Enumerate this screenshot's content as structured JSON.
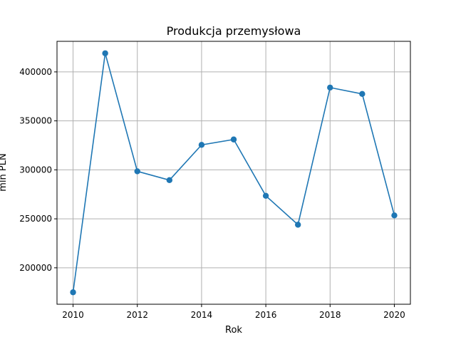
{
  "chart_data": {
    "type": "line",
    "title": "Produkcja przemysłowa",
    "xlabel": "Rok",
    "ylabel": "mln PLN",
    "x": [
      2010,
      2011,
      2012,
      2013,
      2014,
      2015,
      2016,
      2017,
      2018,
      2019,
      2020
    ],
    "series": [
      {
        "values": [
          175000,
          419000,
          298500,
          289500,
          325500,
          331000,
          273500,
          244000,
          384000,
          377500,
          253500
        ],
        "color": "#1f77b4",
        "marker": "circle"
      }
    ],
    "xticks": [
      2010,
      2012,
      2014,
      2016,
      2018,
      2020
    ],
    "yticks": [
      200000,
      250000,
      300000,
      350000,
      400000
    ],
    "xlim": [
      2009.5,
      2020.5
    ],
    "ylim": [
      162800,
      431200
    ],
    "grid": true
  }
}
